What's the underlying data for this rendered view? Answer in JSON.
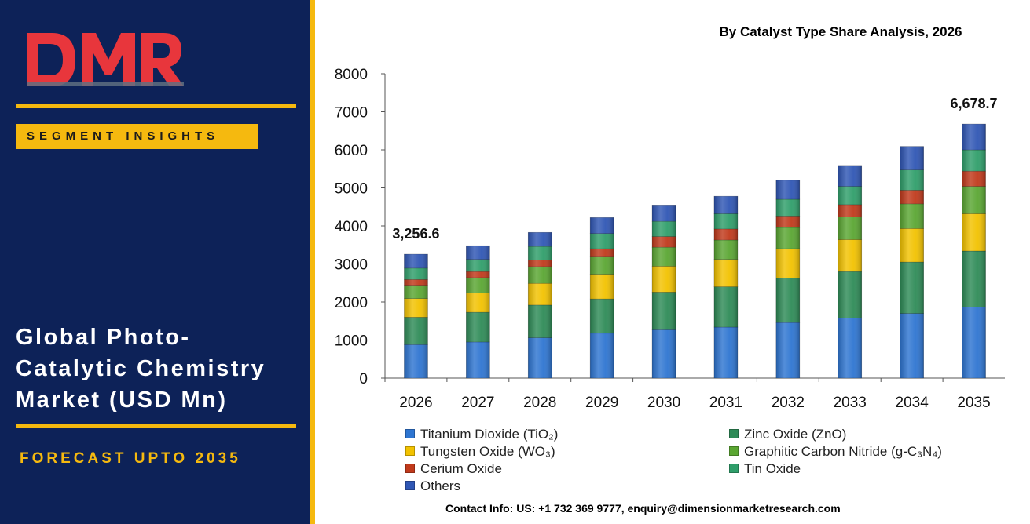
{
  "brand": {
    "logo_text": "DMR",
    "segment_label": "SEGMENT INSIGHTS"
  },
  "report": {
    "title_lines": [
      "Global Photo-",
      "Catalytic Chemistry",
      "Market (USD Mn)"
    ],
    "forecast": "FORECAST UPTO 2035"
  },
  "contact": "Contact Info: US: +1 732 369 9777, enquiry@dimensionmarketresearch.com",
  "chart_data": {
    "type": "bar",
    "stacked": true,
    "title": "By Catalyst Type Share Analysis, 2026",
    "categories": [
      "2026",
      "2027",
      "2028",
      "2029",
      "2030",
      "2031",
      "2032",
      "2033",
      "2034",
      "2035"
    ],
    "ylim": [
      0,
      8000
    ],
    "yticks": [
      "0",
      "1000",
      "2000",
      "3000",
      "4000",
      "5000",
      "6000",
      "7000",
      "8000"
    ],
    "legend_position": "bottom",
    "grid": false,
    "series": [
      {
        "name": "Titanium Dioxide (TiO₂)",
        "color": "#2e75d1",
        "values": [
          880,
          950,
          1060,
          1180,
          1270,
          1340,
          1460,
          1580,
          1700,
          1870
        ]
      },
      {
        "name": "Zinc Oxide (ZnO)",
        "color": "#2e8b57",
        "values": [
          720,
          780,
          860,
          900,
          990,
          1060,
          1170,
          1220,
          1350,
          1470
        ]
      },
      {
        "name": "Tungsten Oxide (WO₃)",
        "color": "#f2c200",
        "values": [
          490,
          510,
          570,
          650,
          680,
          720,
          770,
          840,
          880,
          980
        ]
      },
      {
        "name": "Graphitic Carbon Nitride (g-C₃N₄)",
        "color": "#5aa632",
        "values": [
          350,
          400,
          440,
          470,
          500,
          510,
          560,
          600,
          650,
          720
        ]
      },
      {
        "name": "Cerium Oxide",
        "color": "#c0391b",
        "values": [
          150,
          160,
          170,
          200,
          280,
          290,
          300,
          320,
          360,
          400
        ]
      },
      {
        "name": "Tin Oxide",
        "color": "#2f9e6a",
        "values": [
          300,
          320,
          360,
          400,
          400,
          400,
          440,
          480,
          530,
          560
        ]
      },
      {
        "name": "Others",
        "color": "#2f56b4",
        "values": [
          367,
          360,
          370,
          420,
          430,
          460,
          500,
          550,
          620,
          679
        ]
      }
    ],
    "totals_labeled": [
      {
        "category": "2026",
        "label": "3,256.6",
        "value": 3256.6
      },
      {
        "category": "2035",
        "label": "6,678.7",
        "value": 6678.7
      }
    ]
  }
}
